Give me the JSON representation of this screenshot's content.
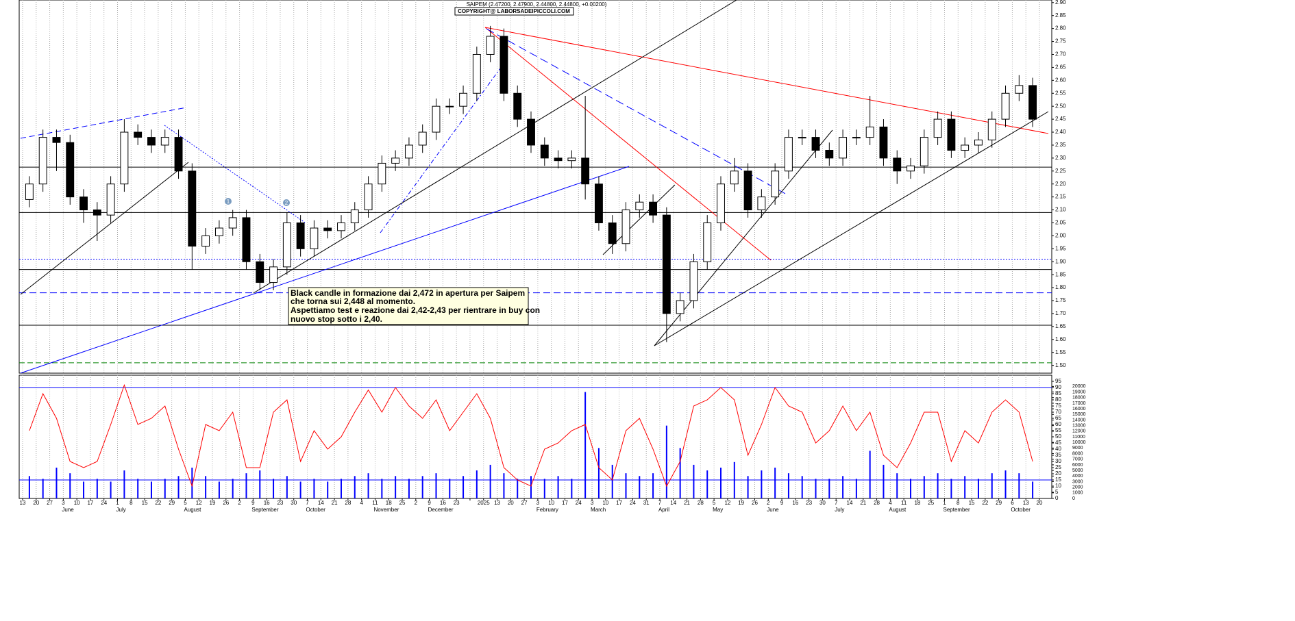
{
  "chart_data": [
    {
      "type": "candlestick",
      "title": "SAIPEM (2.47200, 2.47900, 2.44800, 2.44800, +0.00200)",
      "subtitle": "COPYRIGHT@ LABORSADEIPICCOLI.COM",
      "annotations": [
        "Black candle in formazione dai 2,472 in apertura per Saipem",
        "che torna sui 2,448 al momento.",
        "Aspettiamo test e reazione dai 2,42-2,43  per rientrare in buy con",
        "nuovo stop sotto i 2,40."
      ],
      "markers": [
        "1",
        "2"
      ],
      "xtick_labels": [
        "13",
        "20",
        "27",
        "3",
        "10",
        "17",
        "24",
        "1",
        "8",
        "15",
        "22",
        "29",
        "5",
        "12",
        "19",
        "26",
        "2",
        "9",
        "16",
        "23",
        "30",
        "7",
        "14",
        "21",
        "28",
        "4",
        "11",
        "18",
        "25",
        "2",
        "9",
        "16",
        "23",
        null,
        "2025",
        "13",
        "20",
        "27",
        "3",
        "10",
        "17",
        "24",
        "3",
        "10",
        "17",
        "24",
        "31",
        "7",
        "14",
        "21",
        "28",
        "5",
        "12",
        "19",
        "26",
        "2",
        "9",
        "16",
        "23",
        "30",
        "7",
        "14",
        "21",
        "28",
        "4",
        "11",
        "18",
        "25",
        "1",
        "8",
        "15",
        "22",
        "29",
        "6",
        "13",
        "20"
      ],
      "months": [
        "June",
        "July",
        "August",
        "September",
        "October",
        "November",
        "December",
        "February",
        "March",
        "April",
        "May",
        "June",
        "July",
        "August",
        "September",
        "October"
      ],
      "open": [
        2.14,
        2.2,
        2.38,
        2.36,
        2.15,
        2.1,
        2.08,
        2.2,
        2.4,
        2.38,
        2.35,
        2.38,
        2.25,
        1.96,
        2.0,
        2.03,
        2.07,
        1.9,
        1.82,
        1.88,
        2.05,
        1.95,
        2.03,
        2.02,
        2.05,
        2.1,
        2.2,
        2.28,
        2.3,
        2.35,
        2.4,
        2.5,
        2.5,
        2.55,
        2.7,
        2.77,
        2.55,
        2.45,
        2.35,
        2.3,
        2.29,
        2.3,
        2.2,
        2.05,
        1.97,
        2.1,
        2.13,
        2.08,
        1.7,
        1.75,
        1.9,
        2.05,
        2.2,
        2.25,
        2.1,
        2.15,
        2.25,
        2.38,
        2.38,
        2.33,
        2.3,
        2.38,
        2.38,
        2.42,
        2.3,
        2.25,
        2.27,
        2.38,
        2.45,
        2.33,
        2.35,
        2.37,
        2.45,
        2.55,
        2.58
      ],
      "high": [
        2.23,
        2.41,
        2.41,
        2.39,
        2.18,
        2.13,
        2.23,
        2.45,
        2.43,
        2.41,
        2.41,
        2.41,
        2.28,
        2.03,
        2.06,
        2.1,
        2.1,
        1.93,
        1.91,
        2.09,
        2.08,
        2.06,
        2.06,
        2.08,
        2.13,
        2.23,
        2.31,
        2.33,
        2.38,
        2.43,
        2.53,
        2.53,
        2.58,
        2.73,
        2.81,
        2.8,
        2.58,
        2.48,
        2.38,
        2.33,
        2.33,
        2.54,
        2.23,
        2.08,
        2.13,
        2.16,
        2.16,
        2.11,
        1.78,
        1.93,
        2.08,
        2.23,
        2.3,
        2.28,
        2.18,
        2.28,
        2.41,
        2.41,
        2.41,
        2.36,
        2.41,
        2.41,
        2.54,
        2.45,
        2.33,
        2.3,
        2.41,
        2.48,
        2.48,
        2.38,
        2.4,
        2.48,
        2.58,
        2.62,
        2.61
      ],
      "low": [
        2.11,
        2.17,
        2.25,
        2.12,
        2.05,
        1.98,
        2.05,
        2.17,
        2.35,
        2.32,
        2.32,
        2.22,
        1.87,
        1.93,
        1.97,
        2.0,
        1.87,
        1.79,
        1.79,
        1.85,
        1.92,
        1.92,
        1.99,
        1.99,
        2.02,
        2.07,
        2.17,
        2.25,
        2.27,
        2.32,
        2.37,
        2.47,
        2.47,
        2.52,
        2.67,
        2.52,
        2.42,
        2.32,
        2.27,
        2.26,
        2.26,
        2.14,
        2.02,
        1.93,
        1.94,
        2.07,
        2.05,
        1.59,
        1.67,
        1.72,
        1.87,
        2.02,
        2.17,
        2.07,
        2.07,
        2.12,
        2.22,
        2.35,
        2.3,
        2.27,
        2.27,
        2.35,
        2.35,
        2.27,
        2.2,
        2.22,
        2.24,
        2.35,
        2.3,
        2.3,
        2.32,
        2.34,
        2.42,
        2.52,
        2.42
      ],
      "close": [
        2.2,
        2.38,
        2.36,
        2.15,
        2.1,
        2.08,
        2.2,
        2.4,
        2.38,
        2.35,
        2.38,
        2.25,
        1.96,
        2.0,
        2.03,
        2.07,
        1.9,
        1.82,
        1.88,
        2.05,
        1.95,
        2.03,
        2.02,
        2.05,
        2.1,
        2.2,
        2.28,
        2.3,
        2.35,
        2.4,
        2.5,
        2.5,
        2.55,
        2.7,
        2.77,
        2.55,
        2.45,
        2.35,
        2.3,
        2.29,
        2.3,
        2.2,
        2.05,
        1.97,
        2.1,
        2.13,
        2.08,
        1.7,
        1.75,
        1.9,
        2.05,
        2.2,
        2.25,
        2.1,
        2.15,
        2.25,
        2.38,
        2.38,
        2.33,
        2.3,
        2.38,
        2.38,
        2.42,
        2.3,
        2.25,
        2.27,
        2.38,
        2.45,
        2.33,
        2.35,
        2.37,
        2.45,
        2.55,
        2.58,
        2.45
      ],
      "levels": [
        {
          "value": 2.09,
          "color": "#000000",
          "dash": "none"
        },
        {
          "value": 1.87,
          "color": "#000000",
          "dash": "none"
        },
        {
          "value": 1.655,
          "color": "#000000",
          "dash": "none"
        },
        {
          "value": 2.265,
          "color": "#000000",
          "dash": "none"
        },
        {
          "value": 1.91,
          "color": "#0000ff",
          "dash": "2 2"
        },
        {
          "value": 1.78,
          "color": "#0000ff",
          "dash": "10 5"
        },
        {
          "value": 1.51,
          "color": "#008000",
          "dash": "8 4"
        }
      ],
      "ylim": [
        1.47,
        2.91
      ],
      "yticks": [
        {
          "value": 1.5,
          "label": "1.50"
        },
        {
          "value": 1.55,
          "label": "1.55"
        },
        {
          "value": 1.6,
          "label": "1.60"
        },
        {
          "value": 1.65,
          "label": "1.65"
        },
        {
          "value": 1.7,
          "label": "1.70"
        },
        {
          "value": 1.75,
          "label": "1.75"
        },
        {
          "value": 1.8,
          "label": "1.80"
        },
        {
          "value": 1.85,
          "label": "1.85"
        },
        {
          "value": 1.9,
          "label": "1.90"
        },
        {
          "value": 1.95,
          "label": "1.95"
        },
        {
          "value": 2.0,
          "label": "2.00"
        },
        {
          "value": 2.05,
          "label": "2.05"
        },
        {
          "value": 2.1,
          "label": "2.10"
        },
        {
          "value": 2.15,
          "label": "2.15"
        },
        {
          "value": 2.2,
          "label": "2.20"
        },
        {
          "value": 2.25,
          "label": "2.25"
        },
        {
          "value": 2.3,
          "label": "2.30"
        },
        {
          "value": 2.35,
          "label": "2.35"
        },
        {
          "value": 2.4,
          "label": "2.40"
        },
        {
          "value": 2.45,
          "label": "2.45"
        },
        {
          "value": 2.5,
          "label": "2.50"
        },
        {
          "value": 2.55,
          "label": "2.55"
        },
        {
          "value": 2.6,
          "label": "2.60"
        },
        {
          "value": 2.65,
          "label": "2.65"
        },
        {
          "value": 2.7,
          "label": "2.70"
        },
        {
          "value": 2.75,
          "label": "2.75"
        },
        {
          "value": 2.8,
          "label": "2.80"
        },
        {
          "value": 2.85,
          "label": "2.85"
        },
        {
          "value": 2.9,
          "label": "2.90"
        }
      ]
    },
    {
      "type": "line",
      "color": "#ff0000",
      "values": [
        55,
        85,
        65,
        30,
        25,
        30,
        60,
        92,
        60,
        65,
        75,
        40,
        10,
        60,
        55,
        70,
        25,
        25,
        70,
        80,
        30,
        55,
        40,
        50,
        70,
        88,
        70,
        90,
        75,
        65,
        80,
        55,
        70,
        85,
        65,
        25,
        15,
        10,
        40,
        45,
        55,
        60,
        25,
        15,
        55,
        65,
        40,
        10,
        30,
        75,
        80,
        90,
        80,
        35,
        60,
        90,
        75,
        70,
        45,
        55,
        75,
        55,
        70,
        35,
        25,
        45,
        70,
        70,
        30,
        55,
        45,
        70,
        80,
        70,
        30
      ],
      "levels": [
        90,
        15
      ],
      "level_color": "#0000ff",
      "ylim": [
        0,
        100
      ],
      "yticks": [
        0,
        5,
        10,
        15,
        20,
        25,
        30,
        35,
        40,
        45,
        50,
        55,
        60,
        65,
        70,
        75,
        80,
        85,
        90,
        95
      ]
    },
    {
      "type": "bar",
      "color": "#0000ff",
      "values": [
        4000,
        3500,
        5500,
        4500,
        3000,
        3500,
        3000,
        5000,
        3500,
        3000,
        3500,
        4000,
        5500,
        4000,
        3000,
        3500,
        4500,
        5000,
        3500,
        4000,
        3000,
        3500,
        3000,
        3500,
        4000,
        4500,
        3500,
        4000,
        3500,
        4000,
        4500,
        3500,
        4000,
        5000,
        6000,
        4500,
        3500,
        4000,
        3500,
        4000,
        3500,
        19000,
        9000,
        6000,
        4500,
        4000,
        4500,
        13000,
        9000,
        6000,
        5000,
        5500,
        6500,
        4000,
        5000,
        5500,
        4500,
        4000,
        3500,
        3500,
        4000,
        3500,
        8500,
        6000,
        4500,
        3500,
        4000,
        4500,
        3500,
        4000,
        3500,
        4500,
        5000,
        4500,
        3000
      ],
      "ylim": [
        0,
        22000
      ],
      "yticks": [
        0,
        1000,
        2000,
        3000,
        4000,
        5000,
        6000,
        7000,
        8000,
        9000,
        10000,
        11000,
        12000,
        13000,
        14000,
        15000,
        16000,
        17000,
        18000,
        19000,
        20000
      ]
    }
  ]
}
